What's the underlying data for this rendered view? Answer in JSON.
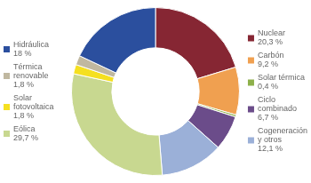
{
  "chart_data": {
    "type": "doughnut",
    "categories": [
      "Nuclear",
      "Carbón",
      "Solar térmica",
      "Ciclo\ncombinado",
      "Cogeneración\ny otros",
      "Eólica",
      "Solar\nfotovoltaica",
      "Térmica\nrenovable",
      "Hidráulica"
    ],
    "values": [
      20.3,
      9.2,
      0.4,
      6.7,
      12.1,
      29.7,
      1.8,
      1.8,
      18.0
    ],
    "value_labels": [
      "20,3 %",
      "9,2 %",
      "0,4 %",
      "6,7 %",
      "12,1 %",
      "29,7 %",
      "1,8 %",
      "1,8 %",
      "18 %"
    ],
    "colors": [
      "#862633",
      "#F0A050",
      "#8DB04A",
      "#6B4C8A",
      "#9BB0D8",
      "#C8D890",
      "#F5E020",
      "#C0B8A0",
      "#2B4F9E"
    ],
    "legend": "sides"
  }
}
